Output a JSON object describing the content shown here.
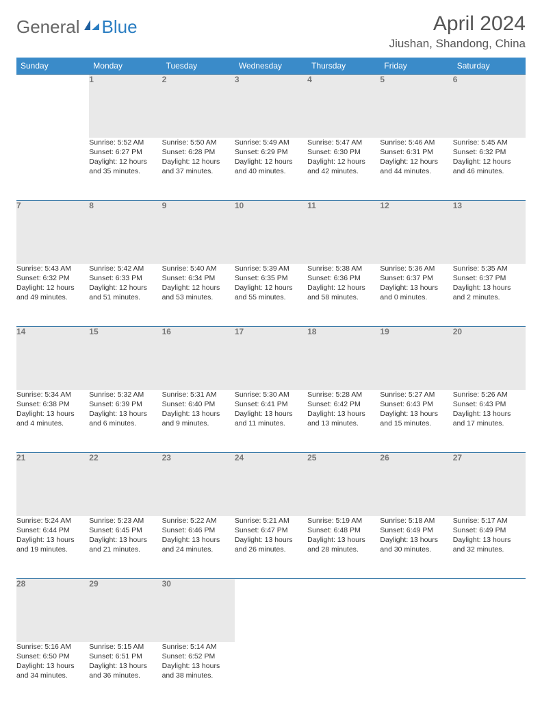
{
  "logo": {
    "part1": "General",
    "part2": "Blue"
  },
  "header": {
    "month_year": "April 2024",
    "location": "Jiushan, Shandong, China"
  },
  "colors": {
    "header_bg": "#3a8bc9",
    "header_text": "#ffffff",
    "daynum_bg": "#e9e9e9",
    "daynum_text": "#777777",
    "body_text": "#333333",
    "row_divider": "#3a7aa8",
    "title_text": "#555555",
    "logo_blue": "#2b7ec2"
  },
  "weekdays": [
    "Sunday",
    "Monday",
    "Tuesday",
    "Wednesday",
    "Thursday",
    "Friday",
    "Saturday"
  ],
  "weeks": [
    {
      "days": [
        {
          "num": "",
          "empty": true
        },
        {
          "num": "1",
          "sunrise": "Sunrise: 5:52 AM",
          "sunset": "Sunset: 6:27 PM",
          "daylight1": "Daylight: 12 hours",
          "daylight2": "and 35 minutes."
        },
        {
          "num": "2",
          "sunrise": "Sunrise: 5:50 AM",
          "sunset": "Sunset: 6:28 PM",
          "daylight1": "Daylight: 12 hours",
          "daylight2": "and 37 minutes."
        },
        {
          "num": "3",
          "sunrise": "Sunrise: 5:49 AM",
          "sunset": "Sunset: 6:29 PM",
          "daylight1": "Daylight: 12 hours",
          "daylight2": "and 40 minutes."
        },
        {
          "num": "4",
          "sunrise": "Sunrise: 5:47 AM",
          "sunset": "Sunset: 6:30 PM",
          "daylight1": "Daylight: 12 hours",
          "daylight2": "and 42 minutes."
        },
        {
          "num": "5",
          "sunrise": "Sunrise: 5:46 AM",
          "sunset": "Sunset: 6:31 PM",
          "daylight1": "Daylight: 12 hours",
          "daylight2": "and 44 minutes."
        },
        {
          "num": "6",
          "sunrise": "Sunrise: 5:45 AM",
          "sunset": "Sunset: 6:32 PM",
          "daylight1": "Daylight: 12 hours",
          "daylight2": "and 46 minutes."
        }
      ]
    },
    {
      "days": [
        {
          "num": "7",
          "sunrise": "Sunrise: 5:43 AM",
          "sunset": "Sunset: 6:32 PM",
          "daylight1": "Daylight: 12 hours",
          "daylight2": "and 49 minutes."
        },
        {
          "num": "8",
          "sunrise": "Sunrise: 5:42 AM",
          "sunset": "Sunset: 6:33 PM",
          "daylight1": "Daylight: 12 hours",
          "daylight2": "and 51 minutes."
        },
        {
          "num": "9",
          "sunrise": "Sunrise: 5:40 AM",
          "sunset": "Sunset: 6:34 PM",
          "daylight1": "Daylight: 12 hours",
          "daylight2": "and 53 minutes."
        },
        {
          "num": "10",
          "sunrise": "Sunrise: 5:39 AM",
          "sunset": "Sunset: 6:35 PM",
          "daylight1": "Daylight: 12 hours",
          "daylight2": "and 55 minutes."
        },
        {
          "num": "11",
          "sunrise": "Sunrise: 5:38 AM",
          "sunset": "Sunset: 6:36 PM",
          "daylight1": "Daylight: 12 hours",
          "daylight2": "and 58 minutes."
        },
        {
          "num": "12",
          "sunrise": "Sunrise: 5:36 AM",
          "sunset": "Sunset: 6:37 PM",
          "daylight1": "Daylight: 13 hours",
          "daylight2": "and 0 minutes."
        },
        {
          "num": "13",
          "sunrise": "Sunrise: 5:35 AM",
          "sunset": "Sunset: 6:37 PM",
          "daylight1": "Daylight: 13 hours",
          "daylight2": "and 2 minutes."
        }
      ]
    },
    {
      "days": [
        {
          "num": "14",
          "sunrise": "Sunrise: 5:34 AM",
          "sunset": "Sunset: 6:38 PM",
          "daylight1": "Daylight: 13 hours",
          "daylight2": "and 4 minutes."
        },
        {
          "num": "15",
          "sunrise": "Sunrise: 5:32 AM",
          "sunset": "Sunset: 6:39 PM",
          "daylight1": "Daylight: 13 hours",
          "daylight2": "and 6 minutes."
        },
        {
          "num": "16",
          "sunrise": "Sunrise: 5:31 AM",
          "sunset": "Sunset: 6:40 PM",
          "daylight1": "Daylight: 13 hours",
          "daylight2": "and 9 minutes."
        },
        {
          "num": "17",
          "sunrise": "Sunrise: 5:30 AM",
          "sunset": "Sunset: 6:41 PM",
          "daylight1": "Daylight: 13 hours",
          "daylight2": "and 11 minutes."
        },
        {
          "num": "18",
          "sunrise": "Sunrise: 5:28 AM",
          "sunset": "Sunset: 6:42 PM",
          "daylight1": "Daylight: 13 hours",
          "daylight2": "and 13 minutes."
        },
        {
          "num": "19",
          "sunrise": "Sunrise: 5:27 AM",
          "sunset": "Sunset: 6:43 PM",
          "daylight1": "Daylight: 13 hours",
          "daylight2": "and 15 minutes."
        },
        {
          "num": "20",
          "sunrise": "Sunrise: 5:26 AM",
          "sunset": "Sunset: 6:43 PM",
          "daylight1": "Daylight: 13 hours",
          "daylight2": "and 17 minutes."
        }
      ]
    },
    {
      "days": [
        {
          "num": "21",
          "sunrise": "Sunrise: 5:24 AM",
          "sunset": "Sunset: 6:44 PM",
          "daylight1": "Daylight: 13 hours",
          "daylight2": "and 19 minutes."
        },
        {
          "num": "22",
          "sunrise": "Sunrise: 5:23 AM",
          "sunset": "Sunset: 6:45 PM",
          "daylight1": "Daylight: 13 hours",
          "daylight2": "and 21 minutes."
        },
        {
          "num": "23",
          "sunrise": "Sunrise: 5:22 AM",
          "sunset": "Sunset: 6:46 PM",
          "daylight1": "Daylight: 13 hours",
          "daylight2": "and 24 minutes."
        },
        {
          "num": "24",
          "sunrise": "Sunrise: 5:21 AM",
          "sunset": "Sunset: 6:47 PM",
          "daylight1": "Daylight: 13 hours",
          "daylight2": "and 26 minutes."
        },
        {
          "num": "25",
          "sunrise": "Sunrise: 5:19 AM",
          "sunset": "Sunset: 6:48 PM",
          "daylight1": "Daylight: 13 hours",
          "daylight2": "and 28 minutes."
        },
        {
          "num": "26",
          "sunrise": "Sunrise: 5:18 AM",
          "sunset": "Sunset: 6:49 PM",
          "daylight1": "Daylight: 13 hours",
          "daylight2": "and 30 minutes."
        },
        {
          "num": "27",
          "sunrise": "Sunrise: 5:17 AM",
          "sunset": "Sunset: 6:49 PM",
          "daylight1": "Daylight: 13 hours",
          "daylight2": "and 32 minutes."
        }
      ]
    },
    {
      "days": [
        {
          "num": "28",
          "sunrise": "Sunrise: 5:16 AM",
          "sunset": "Sunset: 6:50 PM",
          "daylight1": "Daylight: 13 hours",
          "daylight2": "and 34 minutes."
        },
        {
          "num": "29",
          "sunrise": "Sunrise: 5:15 AM",
          "sunset": "Sunset: 6:51 PM",
          "daylight1": "Daylight: 13 hours",
          "daylight2": "and 36 minutes."
        },
        {
          "num": "30",
          "sunrise": "Sunrise: 5:14 AM",
          "sunset": "Sunset: 6:52 PM",
          "daylight1": "Daylight: 13 hours",
          "daylight2": "and 38 minutes."
        },
        {
          "num": "",
          "empty": true
        },
        {
          "num": "",
          "empty": true
        },
        {
          "num": "",
          "empty": true
        },
        {
          "num": "",
          "empty": true
        }
      ]
    }
  ]
}
